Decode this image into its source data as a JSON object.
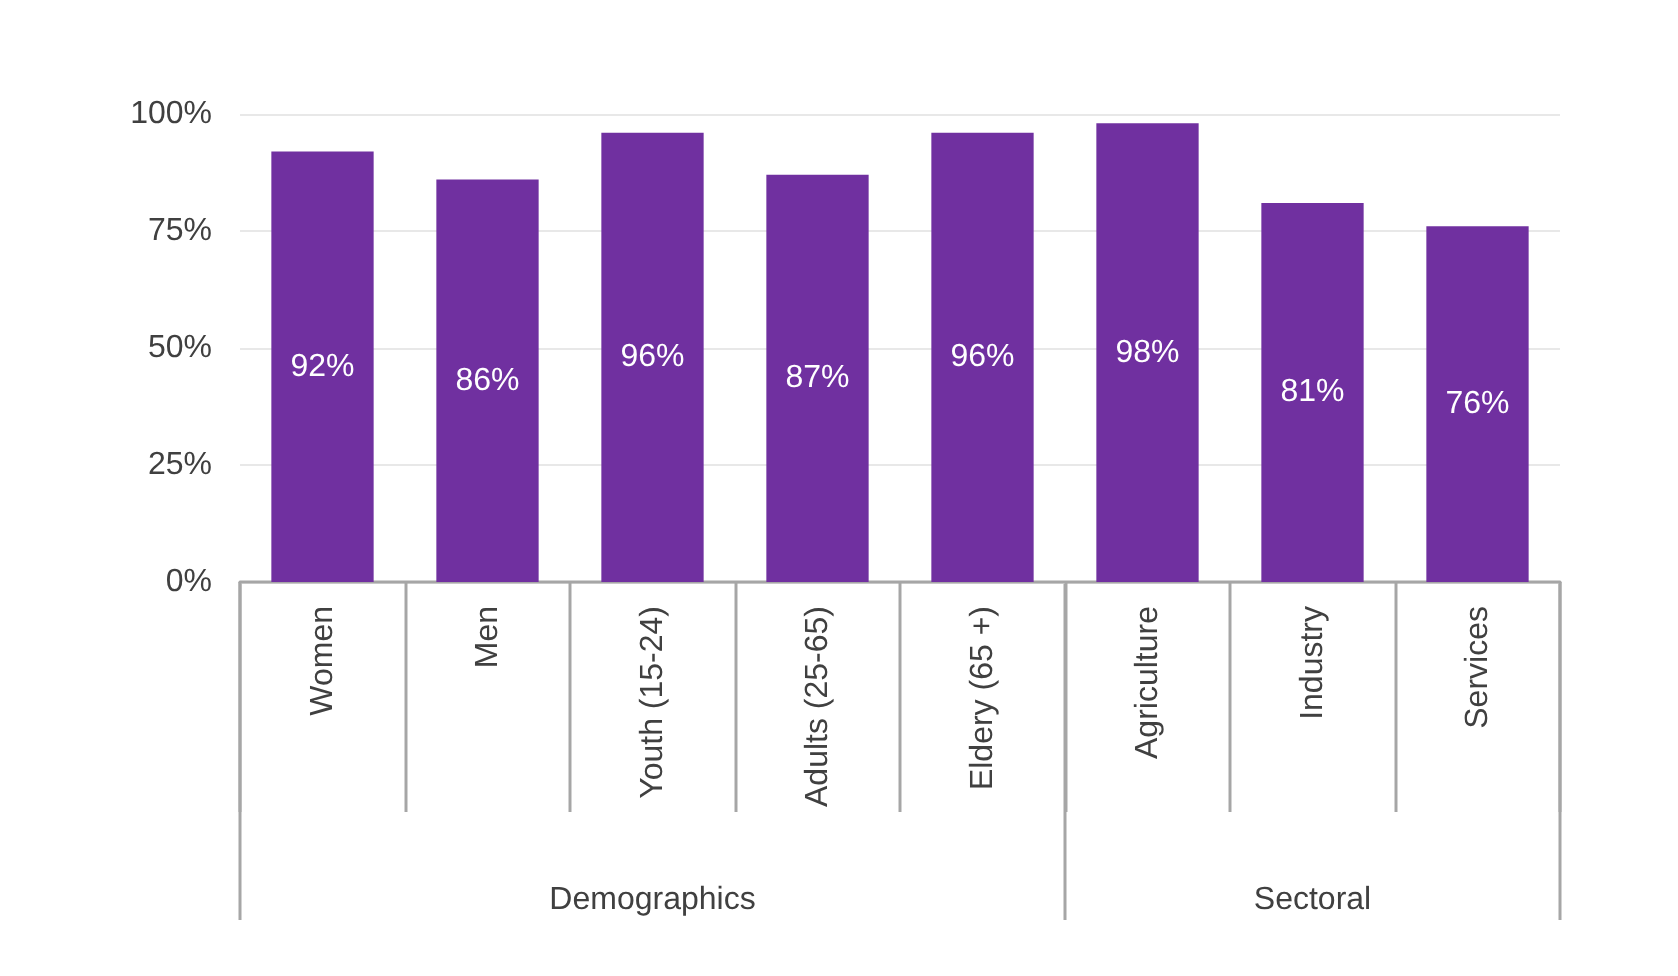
{
  "chart_data": {
    "type": "bar",
    "categories": [
      "Women",
      "Men",
      "Youth (15-24)",
      "Adults (25-65)",
      "Eldery (65 +)",
      "Agriculture",
      "Industry",
      "Services"
    ],
    "values": [
      92,
      86,
      96,
      87,
      96,
      98,
      81,
      76
    ],
    "value_labels": [
      "92%",
      "86%",
      "96%",
      "87%",
      "96%",
      "98%",
      "81%",
      "76%"
    ],
    "color": "#7030a0",
    "ylim": [
      0,
      100
    ],
    "yticks": [
      {
        "value": 0,
        "label": "0%"
      },
      {
        "value": 25,
        "label": "25%"
      },
      {
        "value": 50,
        "label": "50%"
      },
      {
        "value": 75,
        "label": "75%"
      },
      {
        "value": 100,
        "label": "100%"
      }
    ],
    "grid": "y",
    "annotations": [
      "Demographics",
      "Sectoral"
    ]
  }
}
